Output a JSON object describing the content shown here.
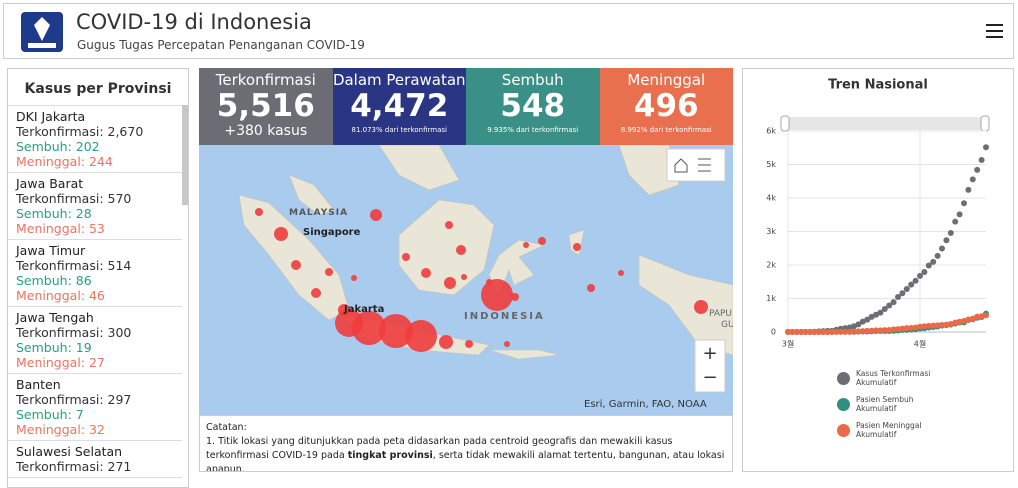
{
  "header": {
    "title": "COVID-19 di Indonesia",
    "subtitle": "Gugus Tugas Percepatan Penanganan COVID-19"
  },
  "provinces": {
    "title": "Kasus per Provinsi",
    "items": [
      {
        "name": "DKI Jakarta",
        "confirmed": "Terkonfirmasi: 2,670",
        "recovered": "Sembuh: 202",
        "deaths": "Meninggal: 244"
      },
      {
        "name": "Jawa Barat",
        "confirmed": "Terkonfirmasi: 570",
        "recovered": "Sembuh: 28",
        "deaths": "Meninggal: 53"
      },
      {
        "name": "Jawa Timur",
        "confirmed": "Terkonfirmasi: 514",
        "recovered": "Sembuh: 86",
        "deaths": "Meninggal: 46"
      },
      {
        "name": "Jawa Tengah",
        "confirmed": "Terkonfirmasi: 300",
        "recovered": "Sembuh: 19",
        "deaths": "Meninggal: 27"
      },
      {
        "name": "Banten",
        "confirmed": "Terkonfirmasi: 297",
        "recovered": "Sembuh: 7",
        "deaths": "Meninggal: 32"
      },
      {
        "name": "Sulawesi Selatan",
        "confirmed": "Terkonfirmasi: 271"
      }
    ]
  },
  "stats": [
    {
      "label": "Terkonfirmasi",
      "value": "5,516",
      "note": "+380 kasus",
      "color": "#6c6c74"
    },
    {
      "label": "Dalam Perawatan",
      "value": "4,472",
      "note": "81.073% dari terkonfirmasi",
      "color": "#2a3584"
    },
    {
      "label": "Sembuh",
      "value": "548",
      "note": "9.935% dari terkonfirmasi",
      "color": "#3a9086"
    },
    {
      "label": "Meninggal",
      "value": "496",
      "note": "8.992% dari terkonfirmasi",
      "color": "#e8704f"
    }
  ],
  "map": {
    "labels": [
      "MALAYSIA",
      "Singapore",
      "Jakarta",
      "INDONESIA",
      "PAPU",
      "GU"
    ],
    "attribution": "Esri, Garmin, FAO, NOAA",
    "zoom_in": "+",
    "zoom_out": "−"
  },
  "notes": {
    "title": "Catatan:",
    "parts": [
      "1. Titik lokasi yang ditunjukkan pada peta didasarkan pada centroid geografis dan mewakili kasus terkonfirmasi COVID-19 pada ",
      "tingkat provinsi",
      ", serta tidak mewakili alamat tertentu, bangunan, atau lokasi apapun."
    ]
  },
  "chart_data": {
    "type": "scatter",
    "title": "Tren Nasional",
    "categories": [
      "3월",
      null,
      null,
      null,
      null,
      null,
      null,
      null,
      null,
      null,
      null,
      null,
      null,
      null,
      null,
      null,
      null,
      null,
      null,
      null,
      null,
      null,
      null,
      null,
      null,
      null,
      null,
      null,
      null,
      null,
      "4월",
      null,
      null,
      null,
      null,
      null,
      null,
      null,
      null,
      null,
      null,
      null,
      null,
      null,
      null,
      null
    ],
    "series": [
      {
        "name": "Kasus Terkonfirmasi Akumulatif",
        "color": "#6d6d75",
        "values": [
          2,
          2,
          2,
          2,
          4,
          4,
          6,
          19,
          27,
          34,
          34,
          69,
          96,
          117,
          134,
          172,
          227,
          309,
          369,
          450,
          514,
          579,
          686,
          790,
          893,
          1046,
          1155,
          1285,
          1414,
          1528,
          1677,
          1790,
          1986,
          2092,
          2273,
          2491,
          2738,
          2956,
          3293,
          3512,
          3842,
          4241,
          4557,
          4839,
          5136,
          5516
        ]
      },
      {
        "name": "Pasien Sembuh Akumulatif",
        "color": "#2f8f80",
        "values": [
          0,
          0,
          0,
          0,
          0,
          0,
          0,
          0,
          0,
          0,
          0,
          5,
          8,
          8,
          8,
          9,
          11,
          15,
          16,
          20,
          29,
          30,
          30,
          31,
          35,
          46,
          59,
          64,
          75,
          81,
          103,
          112,
          134,
          150,
          164,
          192,
          204,
          222,
          252,
          282,
          286,
          359,
          380,
          426,
          446,
          548
        ]
      },
      {
        "name": "Pasien Meninggal Akumulatif",
        "color": "#ea6a47",
        "values": [
          0,
          0,
          0,
          0,
          0,
          0,
          0,
          0,
          0,
          1,
          1,
          4,
          5,
          5,
          5,
          7,
          19,
          25,
          32,
          38,
          48,
          49,
          55,
          58,
          78,
          87,
          102,
          114,
          122,
          136,
          157,
          170,
          181,
          191,
          198,
          209,
          221,
          240,
          280,
          306,
          327,
          373,
          399,
          459,
          469,
          496
        ]
      }
    ],
    "ylim": [
      0,
      6000
    ],
    "yticks": [
      0,
      {
        "value": 1000,
        "label": "1k"
      },
      {
        "value": 2000,
        "label": "2k"
      },
      {
        "value": 3000,
        "label": "3k"
      },
      {
        "value": 4000,
        "label": "4k"
      },
      {
        "value": 5000,
        "label": "5k"
      },
      {
        "value": 6000,
        "label": "6k"
      }
    ],
    "grid": true
  }
}
